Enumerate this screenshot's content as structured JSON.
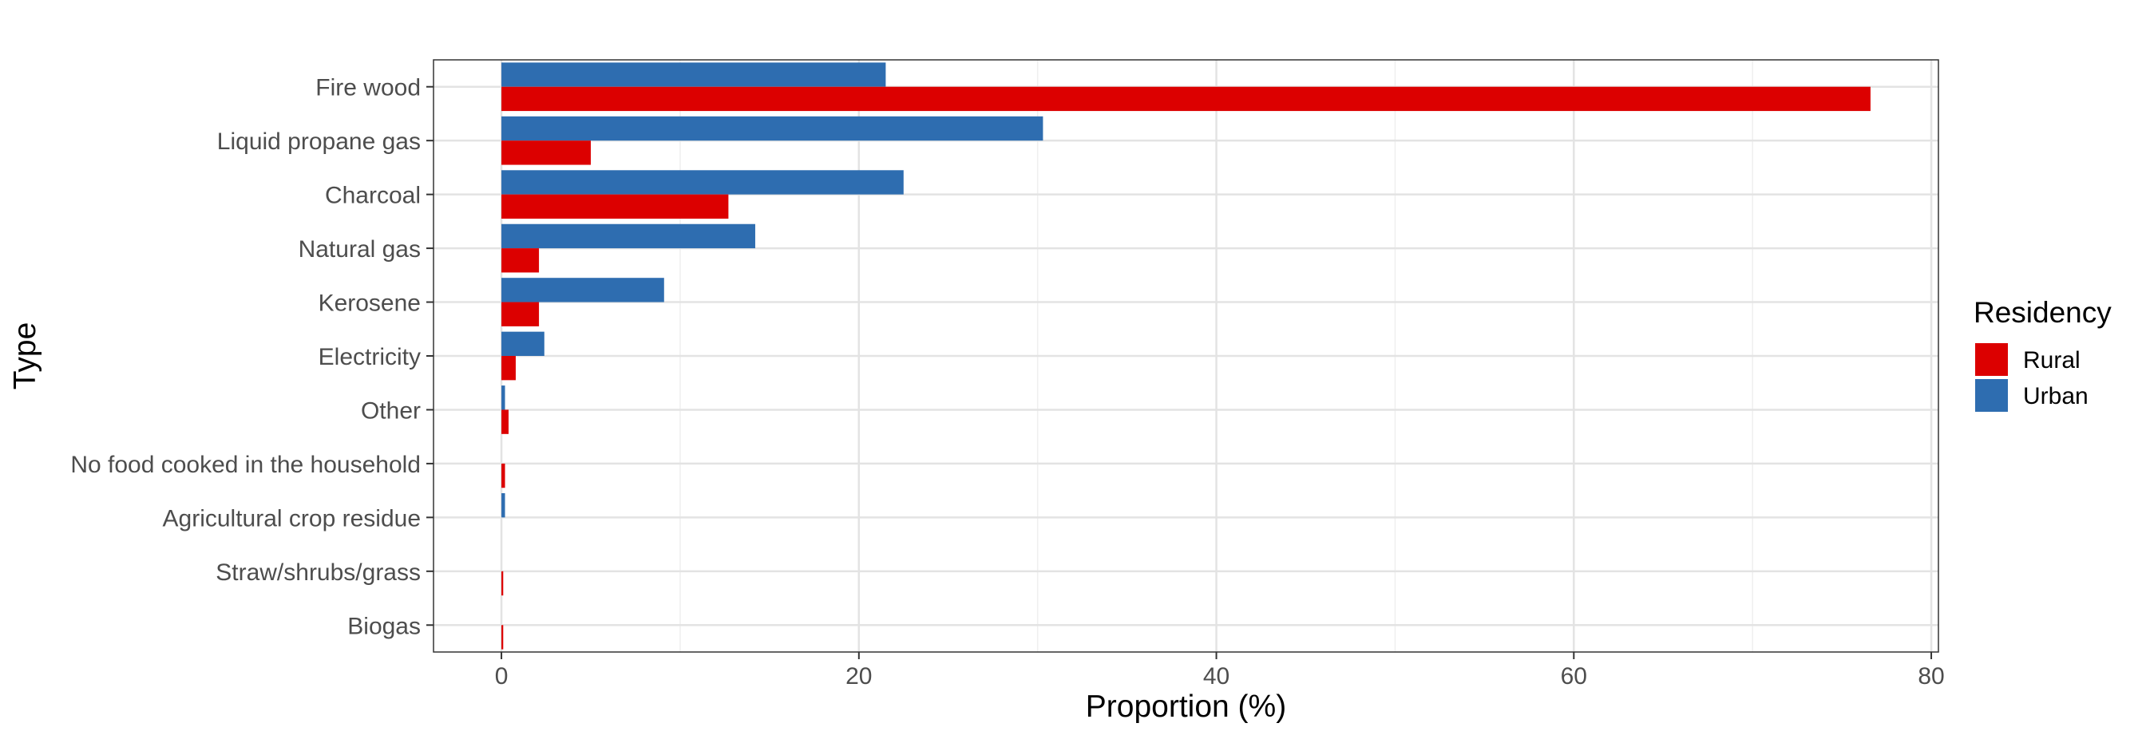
{
  "chart_data": {
    "type": "bar",
    "orientation": "horizontal",
    "xlabel": "Proportion (%)",
    "ylabel": "Type",
    "xlim": [
      -3.8,
      80.4
    ],
    "xticks": [
      0,
      20,
      40,
      60,
      80
    ],
    "grid": true,
    "legend": {
      "title": "Residency",
      "position": "right"
    },
    "categories": [
      "Fire wood",
      "Liquid propane gas",
      "Charcoal",
      "Natural gas",
      "Kerosene",
      "Electricity",
      "Other",
      "No food cooked in the household",
      "Agricultural crop residue",
      "Straw/shrubs/grass",
      "Biogas"
    ],
    "series": [
      {
        "name": "Rural",
        "color": "#DC0000",
        "values": [
          76.6,
          5.0,
          12.7,
          2.1,
          2.1,
          0.8,
          0.4,
          0.2,
          0.0,
          0.1,
          0.1
        ]
      },
      {
        "name": "Urban",
        "color": "#2E6DB0",
        "values": [
          21.5,
          30.3,
          22.5,
          14.2,
          9.1,
          2.4,
          0.2,
          0.0,
          0.2,
          0.0,
          0.0
        ]
      }
    ]
  }
}
